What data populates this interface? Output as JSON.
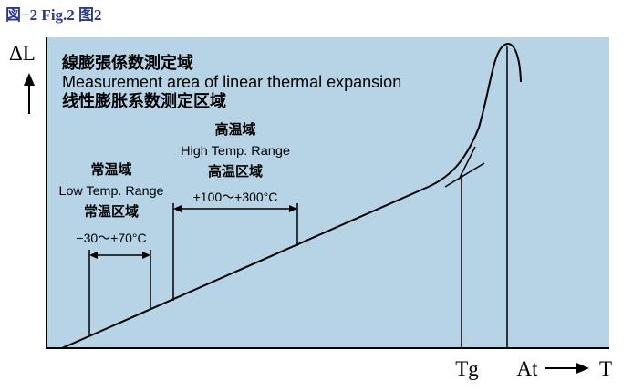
{
  "figure_label": "図−2  Fig.2   图2",
  "title": {
    "line1": "線膨張係数測定域",
    "line2": "Measurement area of linear thermal expansion",
    "line3": "线性膨胀系数测定区域"
  },
  "axes": {
    "y_label": "ΔL",
    "x_label": "T"
  },
  "low_range": {
    "ja": "常温域",
    "en": "Low Temp. Range",
    "zh": "常温区域",
    "range": "−30〜+70°C"
  },
  "high_range": {
    "ja": "高温域",
    "en": "High Temp. Range",
    "zh": "高温区域",
    "range": "+100〜+300°C"
  },
  "markers": {
    "tg": "Tg",
    "at": "At"
  },
  "colors": {
    "panel": "#b7d3e6",
    "line": "#000000",
    "label": "#2a3a8a"
  }
}
